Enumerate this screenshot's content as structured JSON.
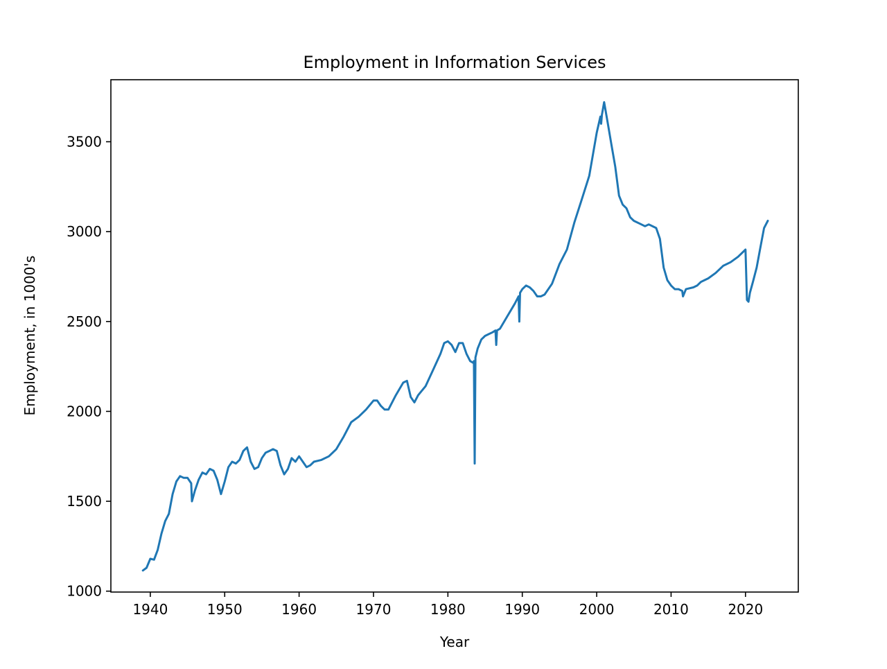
{
  "chart_data": {
    "type": "line",
    "title": "Employment in Information Services",
    "xlabel": "Year",
    "ylabel": "Employment, in 1000's",
    "xlim": [
      1934.7,
      2027.1
    ],
    "ylim": [
      995,
      3845
    ],
    "xticks": [
      1940,
      1950,
      1960,
      1970,
      1980,
      1990,
      2000,
      2010,
      2020
    ],
    "xtick_labels": [
      "1940",
      "1950",
      "1960",
      "1970",
      "1980",
      "1990",
      "2000",
      "2010",
      "2020"
    ],
    "yticks": [
      1000,
      1500,
      2000,
      2500,
      3000,
      3500
    ],
    "ytick_labels": [
      "1000",
      "1500",
      "2000",
      "2500",
      "3000",
      "3500"
    ],
    "grid": false,
    "legend": "none",
    "series": [
      {
        "color": "#1f77b4",
        "x": [
          1939.0,
          1939.5,
          1940.0,
          1940.5,
          1941.0,
          1941.5,
          1942.0,
          1942.5,
          1943.0,
          1943.5,
          1944.0,
          1944.5,
          1945.0,
          1945.5,
          1945.6,
          1946.0,
          1946.5,
          1947.0,
          1947.5,
          1948.0,
          1948.5,
          1949.0,
          1949.5,
          1950.0,
          1950.5,
          1951.0,
          1951.5,
          1952.0,
          1952.5,
          1953.0,
          1953.5,
          1954.0,
          1954.5,
          1955.0,
          1955.5,
          1956.0,
          1956.5,
          1957.0,
          1957.5,
          1958.0,
          1958.5,
          1959.0,
          1959.5,
          1960.0,
          1960.5,
          1961.0,
          1961.5,
          1962.0,
          1963.0,
          1964.0,
          1965.0,
          1966.0,
          1967.0,
          1968.0,
          1969.0,
          1970.0,
          1970.5,
          1971.0,
          1971.5,
          1972.0,
          1973.0,
          1974.0,
          1974.5,
          1975.0,
          1975.5,
          1976.0,
          1977.0,
          1978.0,
          1979.0,
          1979.5,
          1980.0,
          1980.5,
          1981.0,
          1981.5,
          1982.0,
          1982.5,
          1983.0,
          1983.4,
          1983.5,
          1983.6,
          1983.7,
          1984.0,
          1984.5,
          1985.0,
          1985.5,
          1986.0,
          1986.4,
          1986.5,
          1986.6,
          1987.0,
          1988.0,
          1989.0,
          1989.5,
          1989.6,
          1989.7,
          1990.0,
          1990.5,
          1991.0,
          1991.5,
          1992.0,
          1992.5,
          1993.0,
          1994.0,
          1995.0,
          1996.0,
          1997.0,
          1998.0,
          1999.0,
          2000.0,
          2000.5,
          2000.6,
          2000.7,
          2001.0,
          2001.5,
          2002.0,
          2002.5,
          2003.0,
          2003.5,
          2004.0,
          2004.5,
          2005.0,
          2006.0,
          2006.5,
          2007.0,
          2008.0,
          2008.5,
          2009.0,
          2009.5,
          2010.0,
          2010.5,
          2011.0,
          2011.5,
          2011.6,
          2012.0,
          2013.0,
          2013.5,
          2014.0,
          2015.0,
          2016.0,
          2017.0,
          2018.0,
          2019.0,
          2020.0,
          2020.2,
          2020.4,
          2020.6,
          2021.0,
          2021.5,
          2022.0,
          2022.5,
          2023.0
        ],
        "y": [
          1115,
          1130,
          1180,
          1175,
          1230,
          1320,
          1390,
          1430,
          1540,
          1610,
          1640,
          1630,
          1630,
          1600,
          1500,
          1560,
          1620,
          1660,
          1650,
          1680,
          1670,
          1620,
          1540,
          1610,
          1690,
          1720,
          1710,
          1730,
          1780,
          1800,
          1720,
          1680,
          1690,
          1740,
          1770,
          1780,
          1790,
          1780,
          1700,
          1650,
          1680,
          1740,
          1720,
          1750,
          1720,
          1690,
          1700,
          1720,
          1730,
          1750,
          1790,
          1860,
          1940,
          1970,
          2010,
          2060,
          2060,
          2030,
          2010,
          2010,
          2090,
          2160,
          2170,
          2080,
          2050,
          2090,
          2140,
          2230,
          2320,
          2380,
          2390,
          2370,
          2330,
          2380,
          2380,
          2320,
          2280,
          2270,
          2280,
          1710,
          2300,
          2350,
          2400,
          2420,
          2430,
          2440,
          2450,
          2370,
          2450,
          2460,
          2530,
          2600,
          2640,
          2500,
          2660,
          2680,
          2700,
          2690,
          2670,
          2640,
          2640,
          2650,
          2710,
          2820,
          2900,
          3050,
          3180,
          3310,
          3550,
          3640,
          3600,
          3650,
          3720,
          3600,
          3480,
          3360,
          3200,
          3150,
          3130,
          3080,
          3060,
          3040,
          3030,
          3040,
          3020,
          2960,
          2800,
          2730,
          2700,
          2680,
          2680,
          2670,
          2640,
          2680,
          2690,
          2700,
          2720,
          2740,
          2770,
          2810,
          2830,
          2860,
          2900,
          2620,
          2610,
          2660,
          2720,
          2800,
          2910,
          3020,
          3060
        ]
      }
    ]
  }
}
